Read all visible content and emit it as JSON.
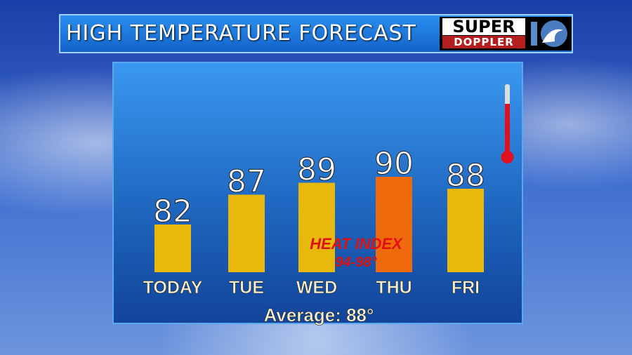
{
  "header": {
    "title": "HIGH TEMPERATURE FORECAST",
    "logo_top": "SUPER",
    "logo_bottom": "DOPPLER",
    "logo_number": "10"
  },
  "chart_data": {
    "type": "bar",
    "categories": [
      "TODAY",
      "TUE",
      "WED",
      "THU",
      "FRI"
    ],
    "values": [
      82,
      87,
      89,
      90,
      88
    ],
    "colors": [
      "#e8b90c",
      "#e8b90c",
      "#e8b90c",
      "#ee6a0c",
      "#e8b90c"
    ],
    "annotation": {
      "line1": "HEAT INDEX",
      "line2": "94-98°",
      "color": "#e01010"
    },
    "footer": "Average: 88°"
  }
}
